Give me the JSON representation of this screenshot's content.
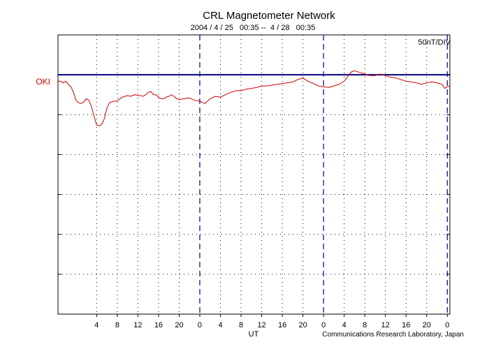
{
  "chart_data": {
    "type": "line",
    "title": "CRL Magnetometer Network",
    "subtitle": "2004 / 4 / 25   00:35 --  4 / 28   00:35",
    "scale_label": "50nT/DIV",
    "xlabel": "UT",
    "credit": "Communications Research Laboratory, Japan",
    "series_label": "OKI",
    "x_unit": "hours UT from 2004-04-25 00:00",
    "xlim": [
      -3.5,
      72.5
    ],
    "ylim": [
      -300,
      50
    ],
    "y_grid_step": 50,
    "x_ticks": [
      {
        "x": 4,
        "label": "4"
      },
      {
        "x": 8,
        "label": "8"
      },
      {
        "x": 12,
        "label": "12"
      },
      {
        "x": 16,
        "label": "16"
      },
      {
        "x": 20,
        "label": "20"
      },
      {
        "x": 24,
        "label": "0"
      },
      {
        "x": 28,
        "label": "4"
      },
      {
        "x": 32,
        "label": "8"
      },
      {
        "x": 36,
        "label": "12"
      },
      {
        "x": 40,
        "label": "16"
      },
      {
        "x": 44,
        "label": "20"
      },
      {
        "x": 48,
        "label": "0"
      },
      {
        "x": 52,
        "label": "4"
      },
      {
        "x": 56,
        "label": "8"
      },
      {
        "x": 60,
        "label": "12"
      },
      {
        "x": 64,
        "label": "16"
      },
      {
        "x": 68,
        "label": "20"
      },
      {
        "x": 72,
        "label": "0"
      }
    ],
    "day_boundaries": [
      24,
      48,
      72
    ],
    "baseline": 0,
    "grid": true,
    "colors": {
      "series": "#cc0000",
      "baseline": "#000080",
      "day_lines": "#000080",
      "series_label": "#cc0000"
    },
    "series": [
      {
        "x": [
          -3.5,
          -3,
          -2.5,
          -2,
          -1.5,
          -1,
          -0.5,
          0,
          0.5,
          1,
          1.5,
          2,
          2.5,
          3,
          3.5,
          4,
          4.5,
          5,
          5.5,
          6,
          6.5,
          7,
          7.5,
          8,
          8.5,
          9,
          9.5,
          10,
          10.5,
          11,
          11.5,
          12,
          12.5,
          13,
          13.5,
          14,
          14.5,
          15,
          15.5,
          16,
          16.5,
          17,
          17.5,
          18,
          18.5,
          19,
          19.5,
          20,
          21,
          22,
          23,
          24,
          25,
          26,
          27,
          28,
          29,
          30,
          31,
          32,
          33,
          34,
          35,
          36,
          37,
          38,
          39,
          40,
          41,
          42,
          43,
          44,
          45,
          46,
          47,
          48,
          49,
          50,
          51,
          52,
          52.5,
          53,
          53.5,
          54,
          55,
          56,
          57,
          58,
          59,
          60,
          61,
          62,
          63,
          64,
          65,
          66,
          67,
          68,
          69,
          70,
          71,
          71.5,
          72,
          72.5
        ],
        "y": [
          -8,
          -8,
          -10,
          -8,
          -12,
          -15,
          -22,
          -32,
          -35,
          -36,
          -34,
          -30,
          -32,
          -40,
          -52,
          -63,
          -64,
          -62,
          -55,
          -42,
          -35,
          -34,
          -33,
          -33,
          -30,
          -28,
          -27,
          -26,
          -27,
          -26,
          -25,
          -26,
          -26,
          -27,
          -25,
          -22,
          -21,
          -25,
          -25,
          -28,
          -30,
          -30,
          -28,
          -27,
          -25,
          -27,
          -30,
          -31,
          -30,
          -29,
          -32,
          -33,
          -36,
          -30,
          -27,
          -28,
          -25,
          -22,
          -20,
          -20,
          -18,
          -17,
          -16,
          -14,
          -14,
          -13,
          -12,
          -11,
          -10,
          -9,
          -6,
          -4,
          -8,
          -11,
          -14,
          -15,
          -16,
          -14,
          -12,
          -8,
          -4,
          1,
          4,
          5,
          3,
          1,
          -1,
          -1,
          1,
          -1,
          -3,
          -4,
          -6,
          -8,
          -9,
          -10,
          -12,
          -10,
          -9,
          -10,
          -12,
          -17,
          -15,
          -14
        ]
      }
    ]
  }
}
